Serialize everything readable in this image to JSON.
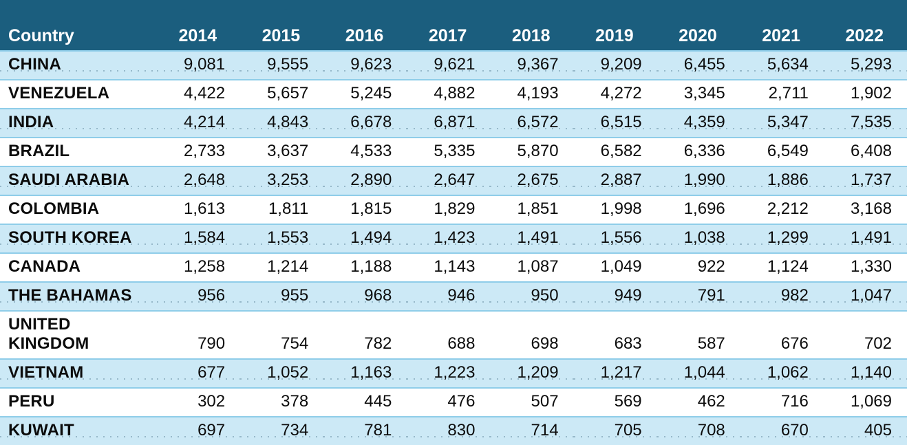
{
  "theme": {
    "header_bg": "#1b5e7e",
    "row_alt_bg": "#cce9f6",
    "row_bg": "#ffffff",
    "divider": "#8fcde9",
    "text": "#0c0c0c",
    "header_text": "#ffffff"
  },
  "table": {
    "columns": [
      "Country",
      "2014",
      "2015",
      "2016",
      "2017",
      "2018",
      "2019",
      "2020",
      "2021",
      "2022"
    ],
    "rows": [
      {
        "country": "CHINA",
        "values": [
          "9,081",
          "9,555",
          "9,623",
          "9,621",
          "9,367",
          "9,209",
          "6,455",
          "5,634",
          "5,293"
        ]
      },
      {
        "country": "VENEZUELA",
        "values": [
          "4,422",
          "5,657",
          "5,245",
          "4,882",
          "4,193",
          "4,272",
          "3,345",
          "2,711",
          "1,902"
        ]
      },
      {
        "country": "INDIA",
        "values": [
          "4,214",
          "4,843",
          "6,678",
          "6,871",
          "6,572",
          "6,515",
          "4,359",
          "5,347",
          "7,535"
        ]
      },
      {
        "country": "BRAZIL",
        "values": [
          "2,733",
          "3,637",
          "4,533",
          "5,335",
          "5,870",
          "6,582",
          "6,336",
          "6,549",
          "6,408"
        ]
      },
      {
        "country": "SAUDI ARABIA",
        "values": [
          "2,648",
          "3,253",
          "2,890",
          "2,647",
          "2,675",
          "2,887",
          "1,990",
          "1,886",
          "1,737"
        ]
      },
      {
        "country": "COLOMBIA",
        "values": [
          "1,613",
          "1,811",
          "1,815",
          "1,829",
          "1,851",
          "1,998",
          "1,696",
          "2,212",
          "3,168"
        ]
      },
      {
        "country": "SOUTH KOREA",
        "values": [
          "1,584",
          "1,553",
          "1,494",
          "1,423",
          "1,491",
          "1,556",
          "1,038",
          "1,299",
          "1,491"
        ]
      },
      {
        "country": "CANADA",
        "values": [
          "1,258",
          "1,214",
          "1,188",
          "1,143",
          "1,087",
          "1,049",
          "922",
          "1,124",
          "1,330"
        ]
      },
      {
        "country": "THE BAHAMAS",
        "values": [
          "956",
          "955",
          "968",
          "946",
          "950",
          "949",
          "791",
          "982",
          "1,047"
        ]
      },
      {
        "country": "UNITED KINGDOM",
        "values": [
          "790",
          "754",
          "782",
          "688",
          "698",
          "683",
          "587",
          "676",
          "702"
        ]
      },
      {
        "country": "VIETNAM",
        "values": [
          "677",
          "1,052",
          "1,163",
          "1,223",
          "1,209",
          "1,217",
          "1,044",
          "1,062",
          "1,140"
        ]
      },
      {
        "country": "PERU",
        "values": [
          "302",
          "378",
          "445",
          "476",
          "507",
          "569",
          "462",
          "716",
          "1,069"
        ]
      },
      {
        "country": "KUWAIT",
        "values": [
          "697",
          "734",
          "781",
          "830",
          "714",
          "705",
          "708",
          "670",
          "405"
        ]
      }
    ]
  },
  "chart_data": {
    "type": "table",
    "title": "",
    "categories": [
      "2014",
      "2015",
      "2016",
      "2017",
      "2018",
      "2019",
      "2020",
      "2021",
      "2022"
    ],
    "series": [
      {
        "name": "CHINA",
        "values": [
          9081,
          9555,
          9623,
          9621,
          9367,
          9209,
          6455,
          5634,
          5293
        ]
      },
      {
        "name": "VENEZUELA",
        "values": [
          4422,
          5657,
          5245,
          4882,
          4193,
          4272,
          3345,
          2711,
          1902
        ]
      },
      {
        "name": "INDIA",
        "values": [
          4214,
          4843,
          6678,
          6871,
          6572,
          6515,
          4359,
          5347,
          7535
        ]
      },
      {
        "name": "BRAZIL",
        "values": [
          2733,
          3637,
          4533,
          5335,
          5870,
          6582,
          6336,
          6549,
          6408
        ]
      },
      {
        "name": "SAUDI ARABIA",
        "values": [
          2648,
          3253,
          2890,
          2647,
          2675,
          2887,
          1990,
          1886,
          1737
        ]
      },
      {
        "name": "COLOMBIA",
        "values": [
          1613,
          1811,
          1815,
          1829,
          1851,
          1998,
          1696,
          2212,
          3168
        ]
      },
      {
        "name": "SOUTH KOREA",
        "values": [
          1584,
          1553,
          1494,
          1423,
          1491,
          1556,
          1038,
          1299,
          1491
        ]
      },
      {
        "name": "CANADA",
        "values": [
          1258,
          1214,
          1188,
          1143,
          1087,
          1049,
          922,
          1124,
          1330
        ]
      },
      {
        "name": "THE BAHAMAS",
        "values": [
          956,
          955,
          968,
          946,
          950,
          949,
          791,
          982,
          1047
        ]
      },
      {
        "name": "UNITED KINGDOM",
        "values": [
          790,
          754,
          782,
          688,
          698,
          683,
          587,
          676,
          702
        ]
      },
      {
        "name": "VIETNAM",
        "values": [
          677,
          1052,
          1163,
          1223,
          1209,
          1217,
          1044,
          1062,
          1140
        ]
      },
      {
        "name": "PERU",
        "values": [
          302,
          378,
          445,
          476,
          507,
          569,
          462,
          716,
          1069
        ]
      },
      {
        "name": "KUWAIT",
        "values": [
          697,
          734,
          781,
          830,
          714,
          705,
          708,
          670,
          405
        ]
      }
    ]
  }
}
